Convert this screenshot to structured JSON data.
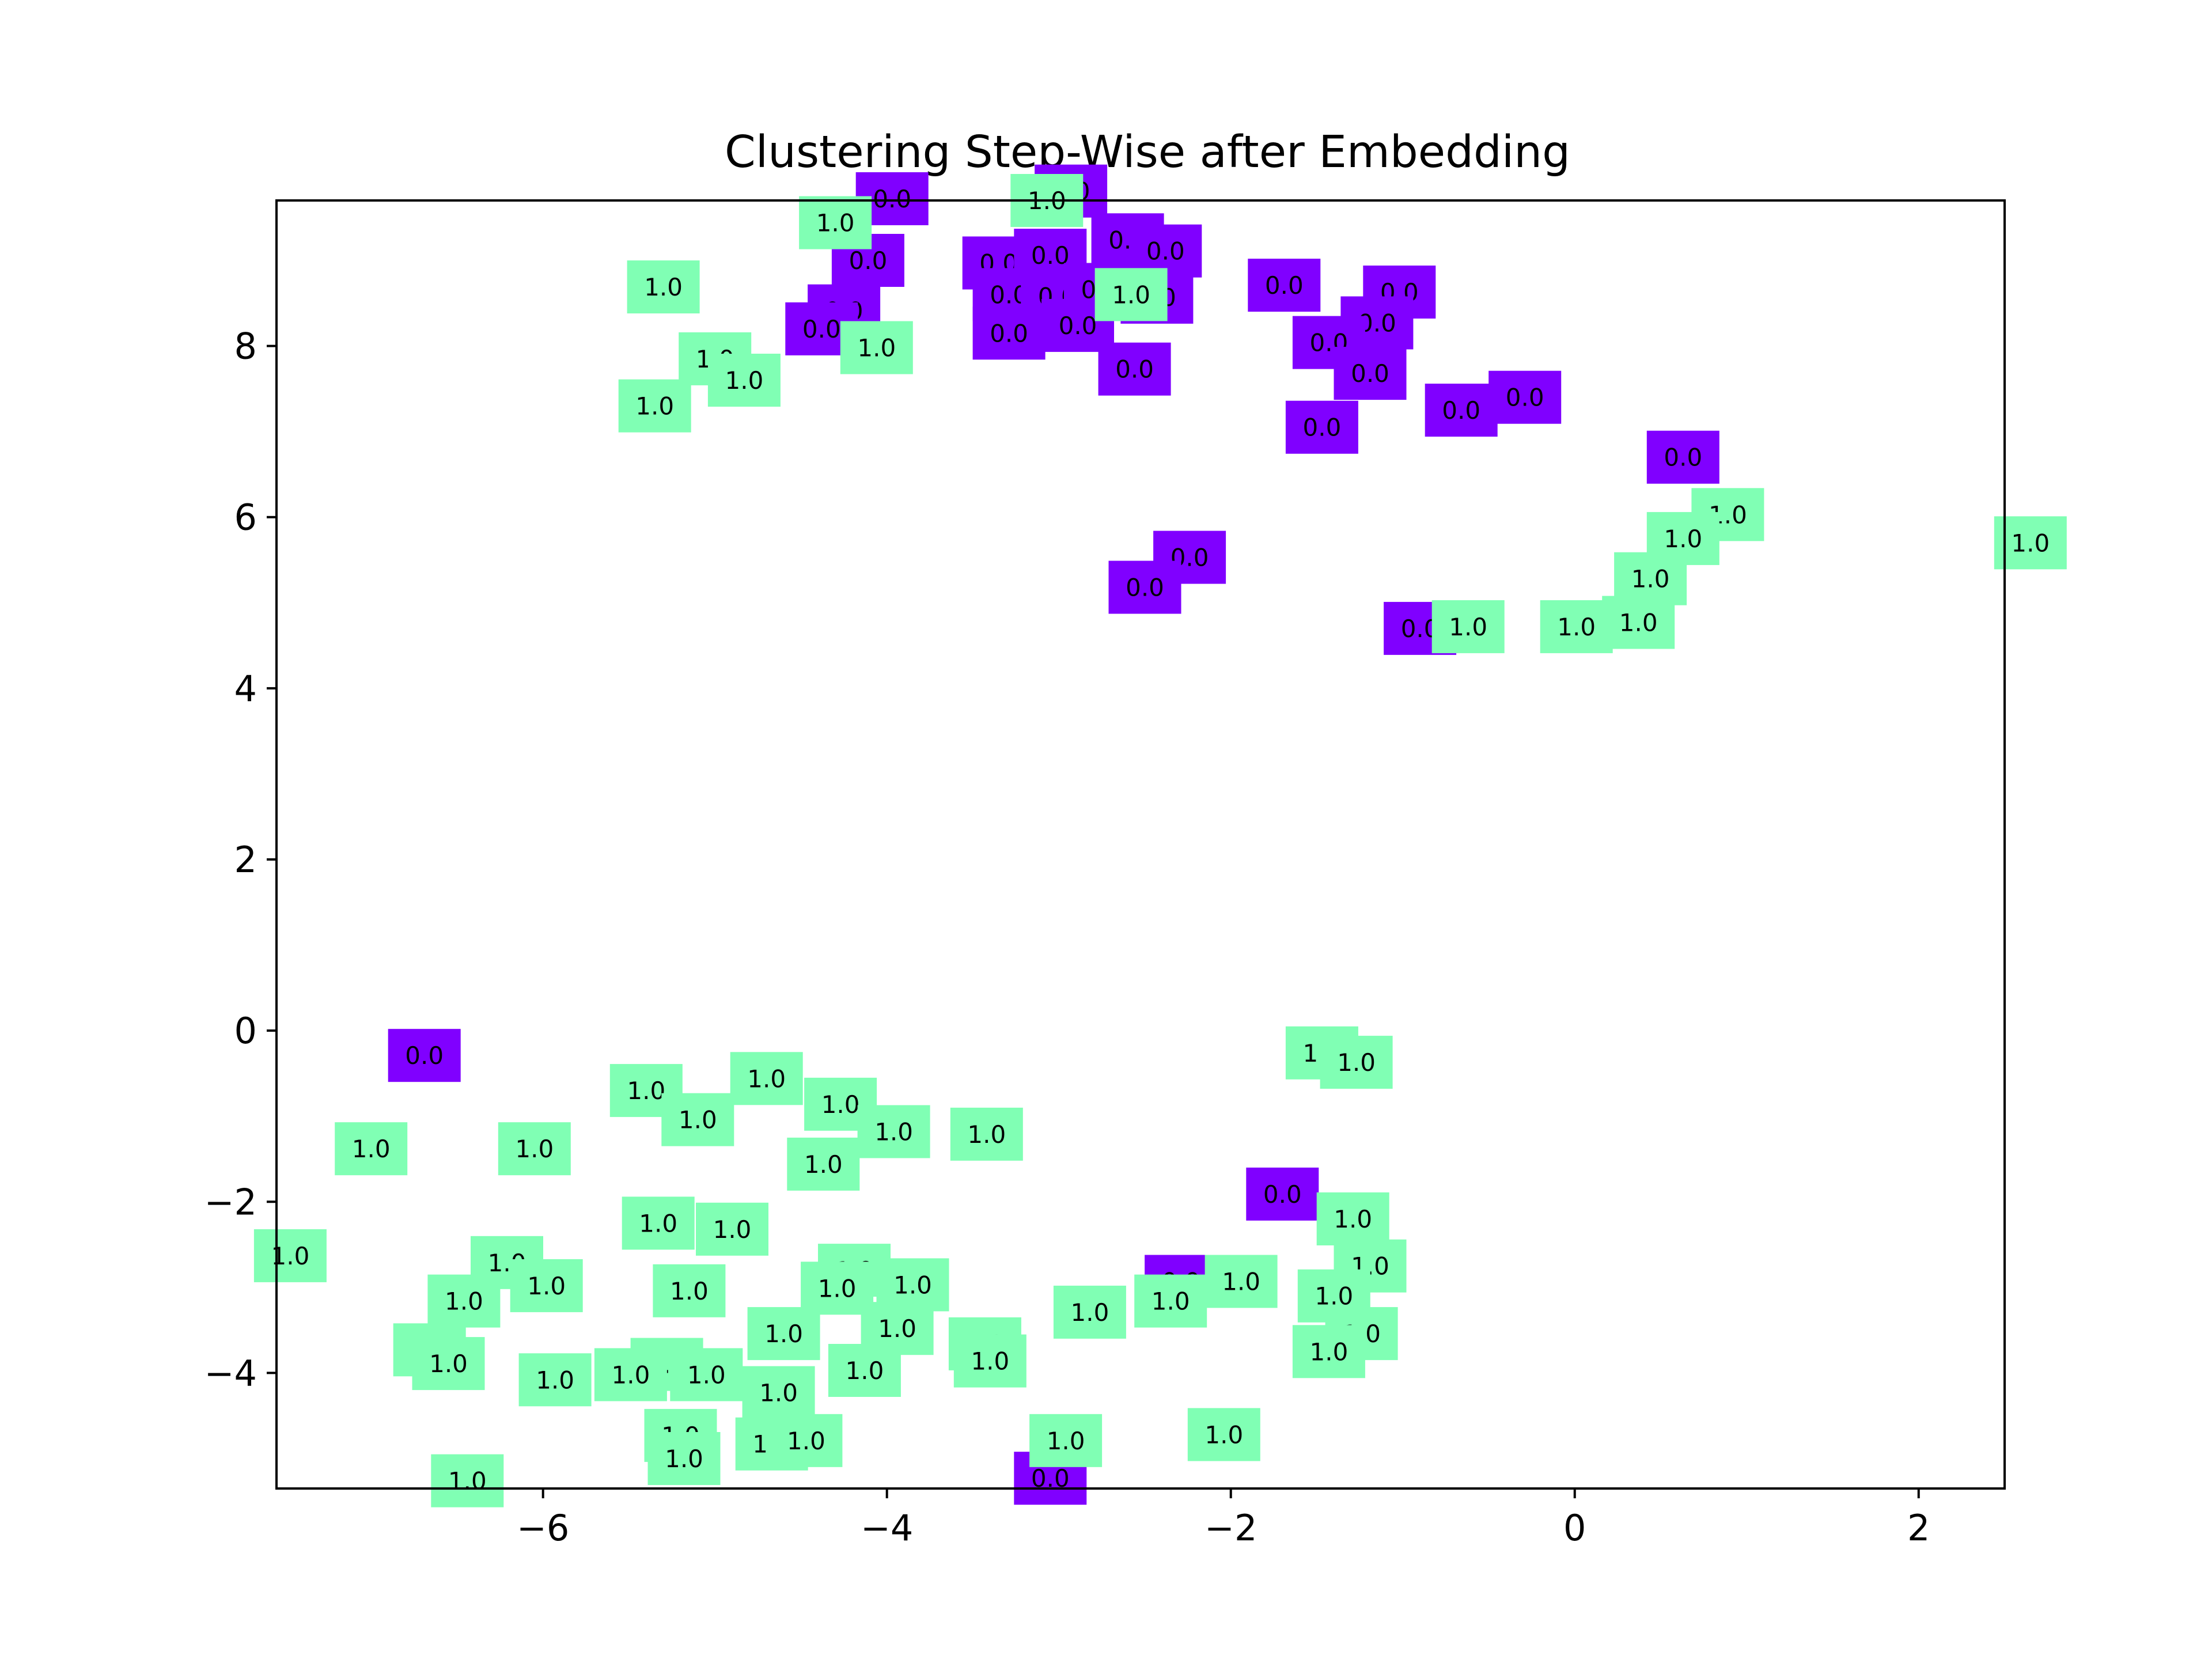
{
  "chart_data": {
    "type": "scatter",
    "title": "Clustering Step-Wise after Embedding",
    "xlabel": "",
    "ylabel": "",
    "xlim": [
      -7.55,
      2.5
    ],
    "ylim": [
      -5.35,
      9.7
    ],
    "grid": false,
    "legend": "none",
    "x_ticks": [
      {
        "value": -6,
        "label": "−6"
      },
      {
        "value": -4,
        "label": "−4"
      },
      {
        "value": -2,
        "label": "−2"
      },
      {
        "value": 0,
        "label": "0"
      },
      {
        "value": 2,
        "label": "2"
      }
    ],
    "y_ticks": [
      {
        "value": -4,
        "label": "−4"
      },
      {
        "value": -2,
        "label": "−2"
      },
      {
        "value": 0,
        "label": "0"
      },
      {
        "value": 2,
        "label": "2"
      },
      {
        "value": 4,
        "label": "4"
      },
      {
        "value": 6,
        "label": "6"
      },
      {
        "value": 8,
        "label": "8"
      }
    ],
    "classes": [
      {
        "label": "0.0",
        "color": "#8000ff"
      },
      {
        "label": "1.0",
        "color": "#80ffb4"
      }
    ],
    "points": [
      {
        "x": -3.97,
        "y": 9.72,
        "label": "0.0"
      },
      {
        "x": -2.93,
        "y": 9.81,
        "label": "0.0"
      },
      {
        "x": -4.11,
        "y": 9.0,
        "label": "0.0"
      },
      {
        "x": -3.35,
        "y": 8.97,
        "label": "0.0"
      },
      {
        "x": -3.05,
        "y": 9.06,
        "label": "0.0"
      },
      {
        "x": -2.6,
        "y": 9.24,
        "label": "0.0"
      },
      {
        "x": -2.38,
        "y": 9.11,
        "label": "0.0"
      },
      {
        "x": -3.29,
        "y": 8.6,
        "label": "0.0"
      },
      {
        "x": -3.01,
        "y": 8.58,
        "label": "0.0"
      },
      {
        "x": -2.76,
        "y": 8.66,
        "label": "0.0"
      },
      {
        "x": -2.43,
        "y": 8.57,
        "label": "0.0"
      },
      {
        "x": -4.25,
        "y": 8.41,
        "label": "0.0"
      },
      {
        "x": -4.38,
        "y": 8.2,
        "label": "0.0"
      },
      {
        "x": -3.29,
        "y": 8.15,
        "label": "0.0"
      },
      {
        "x": -2.89,
        "y": 8.24,
        "label": "0.0"
      },
      {
        "x": -2.56,
        "y": 7.73,
        "label": "0.0"
      },
      {
        "x": -1.69,
        "y": 8.71,
        "label": "0.0"
      },
      {
        "x": -1.02,
        "y": 8.63,
        "label": "0.0"
      },
      {
        "x": -1.15,
        "y": 8.27,
        "label": "0.0"
      },
      {
        "x": -1.43,
        "y": 8.04,
        "label": "0.0"
      },
      {
        "x": -1.19,
        "y": 7.68,
        "label": "0.0"
      },
      {
        "x": -1.47,
        "y": 7.05,
        "label": "0.0"
      },
      {
        "x": -0.66,
        "y": 7.25,
        "label": "0.0"
      },
      {
        "x": -0.29,
        "y": 7.4,
        "label": "0.0"
      },
      {
        "x": 0.63,
        "y": 6.7,
        "label": "0.0"
      },
      {
        "x": -2.24,
        "y": 5.53,
        "label": "0.0"
      },
      {
        "x": -2.5,
        "y": 5.18,
        "label": "0.0"
      },
      {
        "x": -0.9,
        "y": 4.7,
        "label": "0.0"
      },
      {
        "x": -6.69,
        "y": -0.29,
        "label": "0.0"
      },
      {
        "x": -1.7,
        "y": -1.91,
        "label": "0.0"
      },
      {
        "x": -2.29,
        "y": -2.93,
        "label": "0.0"
      },
      {
        "x": -3.05,
        "y": -5.23,
        "label": "0.0"
      },
      {
        "x": -3.07,
        "y": 9.7,
        "label": "1.0"
      },
      {
        "x": -4.3,
        "y": 9.44,
        "label": "1.0"
      },
      {
        "x": -5.3,
        "y": 8.69,
        "label": "1.0"
      },
      {
        "x": -2.58,
        "y": 8.6,
        "label": "1.0"
      },
      {
        "x": -4.06,
        "y": 7.98,
        "label": "1.0"
      },
      {
        "x": -5.0,
        "y": 7.85,
        "label": "1.0"
      },
      {
        "x": -4.83,
        "y": 7.6,
        "label": "1.0"
      },
      {
        "x": -5.35,
        "y": 7.3,
        "label": "1.0"
      },
      {
        "x": 0.89,
        "y": 6.03,
        "label": "1.0"
      },
      {
        "x": 0.63,
        "y": 5.75,
        "label": "1.0"
      },
      {
        "x": 2.65,
        "y": 5.7,
        "label": "1.0"
      },
      {
        "x": 0.44,
        "y": 5.28,
        "label": "1.0"
      },
      {
        "x": 0.37,
        "y": 4.77,
        "label": "1.0"
      },
      {
        "x": -0.62,
        "y": 4.72,
        "label": "1.0"
      },
      {
        "x": 0.01,
        "y": 4.72,
        "label": "1.0"
      },
      {
        "x": -1.47,
        "y": -0.26,
        "label": "1.0"
      },
      {
        "x": -1.27,
        "y": -0.37,
        "label": "1.0"
      },
      {
        "x": -5.4,
        "y": -0.7,
        "label": "1.0"
      },
      {
        "x": -4.7,
        "y": -0.56,
        "label": "1.0"
      },
      {
        "x": -4.27,
        "y": -0.86,
        "label": "1.0"
      },
      {
        "x": -5.1,
        "y": -1.04,
        "label": "1.0"
      },
      {
        "x": -3.96,
        "y": -1.18,
        "label": "1.0"
      },
      {
        "x": -3.42,
        "y": -1.21,
        "label": "1.0"
      },
      {
        "x": -7.0,
        "y": -1.38,
        "label": "1.0"
      },
      {
        "x": -6.05,
        "y": -1.38,
        "label": "1.0"
      },
      {
        "x": -4.37,
        "y": -1.56,
        "label": "1.0"
      },
      {
        "x": -1.29,
        "y": -2.2,
        "label": "1.0"
      },
      {
        "x": -5.33,
        "y": -2.25,
        "label": "1.0"
      },
      {
        "x": -4.9,
        "y": -2.32,
        "label": "1.0"
      },
      {
        "x": -7.47,
        "y": -2.63,
        "label": "1.0"
      },
      {
        "x": -6.21,
        "y": -2.71,
        "label": "1.0"
      },
      {
        "x": -4.19,
        "y": -2.8,
        "label": "1.0"
      },
      {
        "x": -1.19,
        "y": -2.75,
        "label": "1.0"
      },
      {
        "x": -5.98,
        "y": -2.98,
        "label": "1.0"
      },
      {
        "x": -3.85,
        "y": -2.97,
        "label": "1.0"
      },
      {
        "x": -1.94,
        "y": -2.93,
        "label": "1.0"
      },
      {
        "x": -5.15,
        "y": -3.04,
        "label": "1.0"
      },
      {
        "x": -4.29,
        "y": -3.01,
        "label": "1.0"
      },
      {
        "x": -6.46,
        "y": -3.16,
        "label": "1.0"
      },
      {
        "x": -2.35,
        "y": -3.16,
        "label": "1.0"
      },
      {
        "x": -1.4,
        "y": -3.1,
        "label": "1.0"
      },
      {
        "x": -2.82,
        "y": -3.29,
        "label": "1.0"
      },
      {
        "x": -3.94,
        "y": -3.48,
        "label": "1.0"
      },
      {
        "x": -4.6,
        "y": -3.54,
        "label": "1.0"
      },
      {
        "x": -1.24,
        "y": -3.54,
        "label": "1.0"
      },
      {
        "x": -3.43,
        "y": -3.66,
        "label": "1.0"
      },
      {
        "x": -6.66,
        "y": -3.73,
        "label": "1.0"
      },
      {
        "x": -1.43,
        "y": -3.75,
        "label": "1.0"
      },
      {
        "x": -6.55,
        "y": -3.89,
        "label": "1.0"
      },
      {
        "x": -5.28,
        "y": -3.9,
        "label": "1.0"
      },
      {
        "x": -5.49,
        "y": -4.02,
        "label": "1.0"
      },
      {
        "x": -5.05,
        "y": -4.02,
        "label": "1.0"
      },
      {
        "x": -4.13,
        "y": -3.97,
        "label": "1.0"
      },
      {
        "x": -3.4,
        "y": -3.86,
        "label": "1.0"
      },
      {
        "x": -5.93,
        "y": -4.08,
        "label": "1.0"
      },
      {
        "x": -4.63,
        "y": -4.23,
        "label": "1.0"
      },
      {
        "x": -5.2,
        "y": -4.73,
        "label": "1.0"
      },
      {
        "x": -4.67,
        "y": -4.83,
        "label": "1.0"
      },
      {
        "x": -4.47,
        "y": -4.79,
        "label": "1.0"
      },
      {
        "x": -2.96,
        "y": -4.79,
        "label": "1.0"
      },
      {
        "x": -2.04,
        "y": -4.72,
        "label": "1.0"
      },
      {
        "x": -5.18,
        "y": -5.0,
        "label": "1.0"
      },
      {
        "x": -6.44,
        "y": -5.26,
        "label": "1.0"
      }
    ]
  }
}
